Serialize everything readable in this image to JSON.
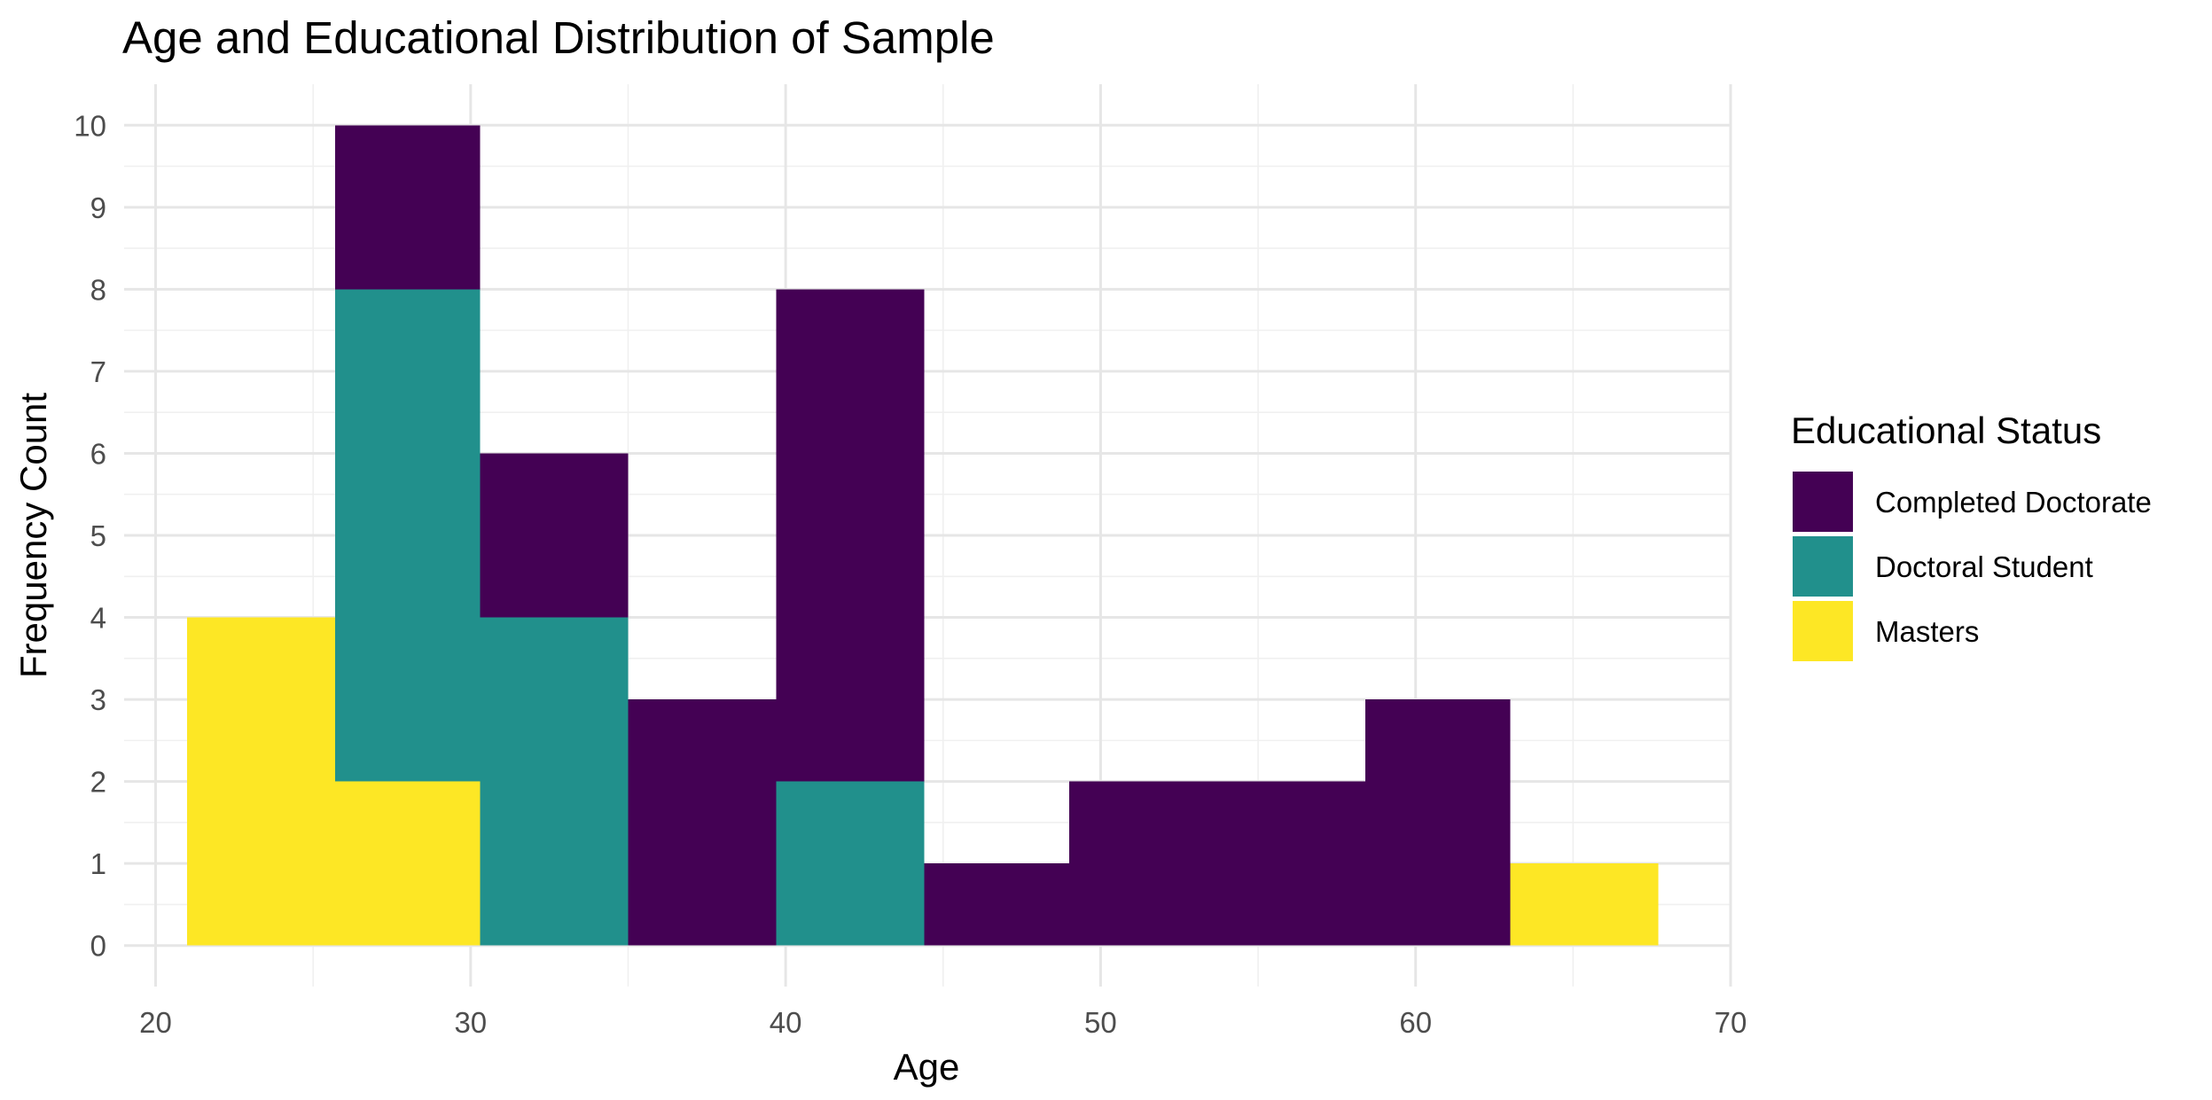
{
  "chart_data": {
    "type": "bar",
    "subtype": "stacked-histogram",
    "title": "Age and Educational Distribution of Sample",
    "xlabel": "Age",
    "ylabel": "Frequency Count",
    "xlim": [
      19,
      70
    ],
    "ylim": [
      -0.5,
      10.5
    ],
    "x_ticks": [
      20,
      30,
      40,
      50,
      60,
      70
    ],
    "y_ticks": [
      0,
      1,
      2,
      3,
      4,
      5,
      6,
      7,
      8,
      9,
      10
    ],
    "grid": true,
    "legend": {
      "title": "Educational Status",
      "position": "right"
    },
    "bins": [
      {
        "start": 21.0,
        "end": 25.7
      },
      {
        "start": 25.7,
        "end": 30.3
      },
      {
        "start": 30.3,
        "end": 35.0
      },
      {
        "start": 35.0,
        "end": 39.7
      },
      {
        "start": 39.7,
        "end": 44.4
      },
      {
        "start": 44.4,
        "end": 49.0
      },
      {
        "start": 49.0,
        "end": 53.7
      },
      {
        "start": 53.7,
        "end": 58.4
      },
      {
        "start": 58.4,
        "end": 63.0
      },
      {
        "start": 63.0,
        "end": 67.7
      }
    ],
    "series": [
      {
        "name": "Masters",
        "color": "#fde725",
        "values": [
          4,
          2,
          0,
          0,
          0,
          0,
          0,
          0,
          0,
          1
        ]
      },
      {
        "name": "Doctoral Student",
        "color": "#21908c",
        "values": [
          0,
          6,
          4,
          0,
          2,
          0,
          0,
          0,
          0,
          0
        ]
      },
      {
        "name": "Completed Doctorate",
        "color": "#440154",
        "values": [
          0,
          2,
          2,
          3,
          6,
          1,
          2,
          2,
          3,
          0
        ]
      }
    ],
    "legend_order": [
      "Completed Doctorate",
      "Doctoral Student",
      "Masters"
    ]
  }
}
